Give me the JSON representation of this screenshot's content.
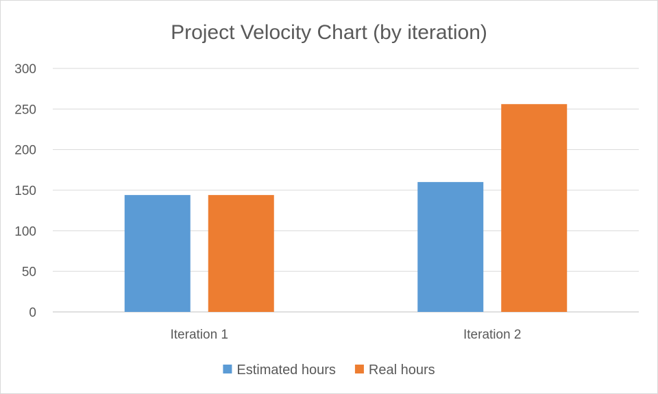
{
  "chart_data": {
    "type": "bar",
    "title": "Project Velocity Chart (by iteration)",
    "categories": [
      "Iteration 1",
      "Iteration 2"
    ],
    "series": [
      {
        "name": "Estimated hours",
        "color": "#5b9bd5",
        "values": [
          144,
          160
        ]
      },
      {
        "name": "Real hours",
        "color": "#ed7d31",
        "values": [
          144,
          256
        ]
      }
    ],
    "ylim": [
      0,
      300
    ],
    "yticks": [
      "0",
      "50",
      "100",
      "150",
      "200",
      "250",
      "300"
    ],
    "grid": true,
    "legend_position": "bottom"
  }
}
